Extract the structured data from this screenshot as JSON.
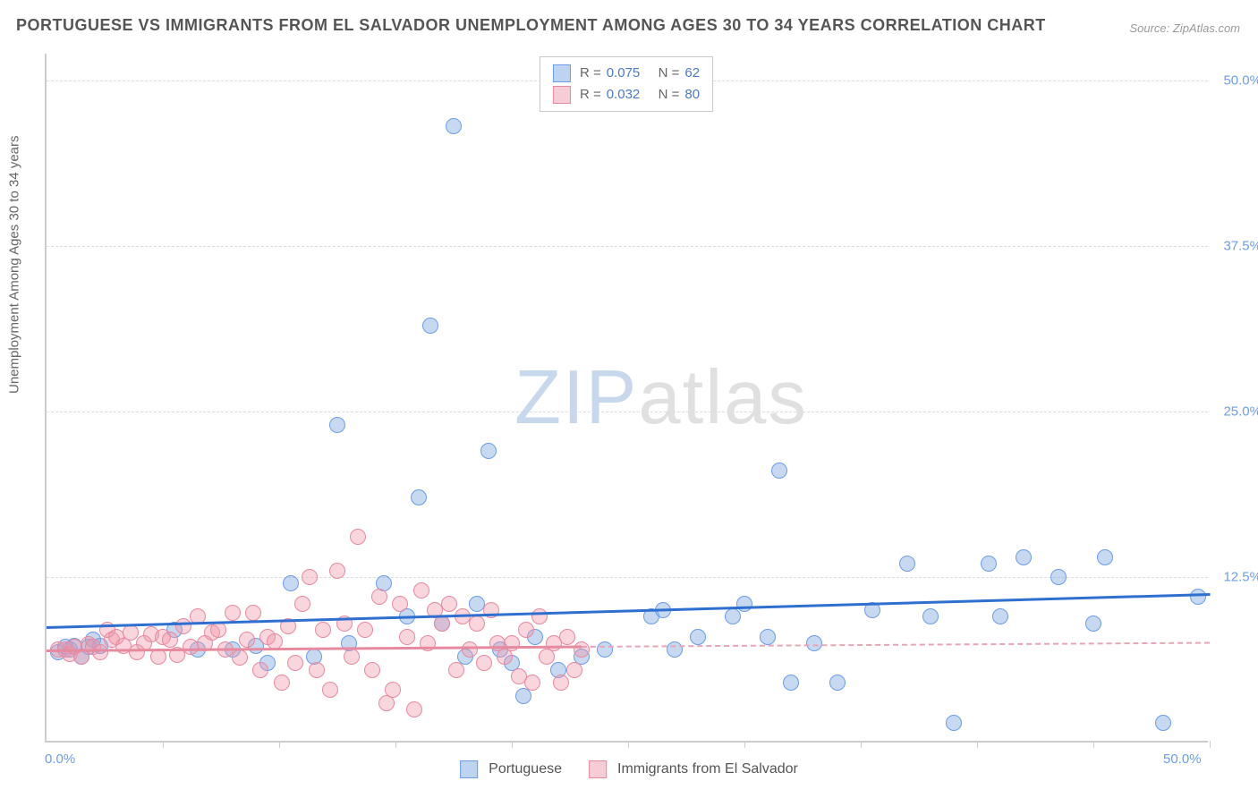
{
  "title": "PORTUGUESE VS IMMIGRANTS FROM EL SALVADOR UNEMPLOYMENT AMONG AGES 30 TO 34 YEARS CORRELATION CHART",
  "source": "Source: ZipAtlas.com",
  "ylabel": "Unemployment Among Ages 30 to 34 years",
  "watermark_a": "ZIP",
  "watermark_b": "atlas",
  "chart": {
    "type": "scatter",
    "xlim": [
      0,
      50
    ],
    "ylim": [
      0,
      52
    ],
    "xtick_labels": [
      "0.0%",
      "50.0%"
    ],
    "ytick_positions": [
      12.5,
      25,
      37.5,
      50
    ],
    "ytick_labels": [
      "12.5%",
      "25.0%",
      "37.5%",
      "50.0%"
    ],
    "xtickmark_positions": [
      5,
      10,
      15,
      20,
      25,
      30,
      35,
      40,
      45,
      50
    ],
    "grid_color": "#dddddd",
    "axis_color": "#cccccc",
    "background_color": "#ffffff",
    "point_radius": 9,
    "series": [
      {
        "name": "Portuguese",
        "fill": "rgba(130,170,225,0.45)",
        "stroke": "#6b9de8",
        "swatch_fill": "#bdd4f0",
        "swatch_stroke": "#6b9de8",
        "R": "0.075",
        "N": "62",
        "trend": {
          "x1": 0,
          "y1": 8.8,
          "x2": 50,
          "y2": 11.3,
          "color": "#2f6fd0",
          "dashed": false
        },
        "points": [
          [
            0.5,
            6.8
          ],
          [
            0.8,
            7.2
          ],
          [
            1.0,
            7.0
          ],
          [
            1.2,
            7.3
          ],
          [
            1.5,
            6.5
          ],
          [
            1.8,
            7.2
          ],
          [
            2.0,
            7.8
          ],
          [
            2.3,
            7.3
          ],
          [
            5.5,
            8.5
          ],
          [
            6.5,
            7.0
          ],
          [
            8.0,
            7.0
          ],
          [
            9.0,
            7.3
          ],
          [
            9.5,
            6.0
          ],
          [
            10.5,
            12.0
          ],
          [
            11.5,
            6.5
          ],
          [
            12.5,
            24.0
          ],
          [
            13.0,
            7.5
          ],
          [
            14.5,
            12.0
          ],
          [
            15.5,
            9.5
          ],
          [
            16.0,
            18.5
          ],
          [
            16.5,
            31.5
          ],
          [
            17.0,
            9.0
          ],
          [
            17.5,
            46.5
          ],
          [
            18.0,
            6.5
          ],
          [
            18.5,
            10.5
          ],
          [
            19.0,
            22.0
          ],
          [
            19.5,
            7.0
          ],
          [
            20.0,
            6.0
          ],
          [
            20.5,
            3.5
          ],
          [
            21.0,
            8.0
          ],
          [
            22.0,
            5.5
          ],
          [
            23.0,
            6.5
          ],
          [
            24.0,
            7.0
          ],
          [
            26.0,
            9.5
          ],
          [
            26.5,
            10.0
          ],
          [
            27.0,
            7.0
          ],
          [
            28.0,
            8.0
          ],
          [
            29.5,
            9.5
          ],
          [
            30.0,
            10.5
          ],
          [
            31.0,
            8.0
          ],
          [
            31.5,
            20.5
          ],
          [
            32.0,
            4.5
          ],
          [
            33.0,
            7.5
          ],
          [
            34.0,
            4.5
          ],
          [
            35.5,
            10.0
          ],
          [
            37.0,
            13.5
          ],
          [
            38.0,
            9.5
          ],
          [
            39.0,
            1.5
          ],
          [
            40.5,
            13.5
          ],
          [
            41.0,
            9.5
          ],
          [
            42.0,
            14.0
          ],
          [
            43.5,
            12.5
          ],
          [
            45.0,
            9.0
          ],
          [
            45.5,
            14.0
          ],
          [
            48.0,
            1.5
          ],
          [
            49.5,
            11.0
          ]
        ]
      },
      {
        "name": "Immigrants from El Salvador",
        "fill": "rgba(240,150,170,0.40)",
        "stroke": "#e68aa0",
        "swatch_fill": "#f6cdd6",
        "swatch_stroke": "#e68aa0",
        "R": "0.032",
        "N": "80",
        "trend": {
          "x1": 0,
          "y1": 7.0,
          "x2": 23,
          "y2": 7.3,
          "color": "#e68aa0",
          "dashed": false
        },
        "trend_ext": {
          "x1": 23,
          "y1": 7.3,
          "x2": 50,
          "y2": 7.6,
          "color": "#e8a5b5",
          "dashed": true
        },
        "points": [
          [
            0.5,
            7.0
          ],
          [
            0.8,
            7.0
          ],
          [
            1.0,
            6.7
          ],
          [
            1.2,
            7.2
          ],
          [
            1.5,
            6.5
          ],
          [
            1.8,
            7.4
          ],
          [
            2.0,
            7.2
          ],
          [
            2.3,
            6.8
          ],
          [
            2.6,
            8.5
          ],
          [
            2.8,
            7.8
          ],
          [
            3.0,
            8.0
          ],
          [
            3.3,
            7.3
          ],
          [
            3.6,
            8.3
          ],
          [
            3.9,
            6.8
          ],
          [
            4.2,
            7.5
          ],
          [
            4.5,
            8.2
          ],
          [
            4.8,
            6.5
          ],
          [
            5.0,
            8.0
          ],
          [
            5.3,
            7.8
          ],
          [
            5.6,
            6.6
          ],
          [
            5.9,
            8.8
          ],
          [
            6.2,
            7.2
          ],
          [
            6.5,
            9.5
          ],
          [
            6.8,
            7.5
          ],
          [
            7.1,
            8.3
          ],
          [
            7.4,
            8.5
          ],
          [
            7.7,
            7.0
          ],
          [
            8.0,
            9.8
          ],
          [
            8.3,
            6.4
          ],
          [
            8.6,
            7.8
          ],
          [
            8.9,
            9.8
          ],
          [
            9.2,
            5.5
          ],
          [
            9.5,
            8.0
          ],
          [
            9.8,
            7.6
          ],
          [
            10.1,
            4.5
          ],
          [
            10.4,
            8.8
          ],
          [
            10.7,
            6.0
          ],
          [
            11.0,
            10.5
          ],
          [
            11.3,
            12.5
          ],
          [
            11.6,
            5.5
          ],
          [
            11.9,
            8.5
          ],
          [
            12.2,
            4.0
          ],
          [
            12.5,
            13.0
          ],
          [
            12.8,
            9.0
          ],
          [
            13.1,
            6.5
          ],
          [
            13.4,
            15.5
          ],
          [
            13.7,
            8.5
          ],
          [
            14.0,
            5.5
          ],
          [
            14.3,
            11.0
          ],
          [
            14.6,
            3.0
          ],
          [
            14.9,
            4.0
          ],
          [
            15.2,
            10.5
          ],
          [
            15.5,
            8.0
          ],
          [
            15.8,
            2.5
          ],
          [
            16.1,
            11.5
          ],
          [
            16.4,
            7.5
          ],
          [
            16.7,
            10.0
          ],
          [
            17.0,
            9.0
          ],
          [
            17.3,
            10.5
          ],
          [
            17.6,
            5.5
          ],
          [
            17.9,
            9.5
          ],
          [
            18.2,
            7.0
          ],
          [
            18.5,
            9.0
          ],
          [
            18.8,
            6.0
          ],
          [
            19.1,
            10.0
          ],
          [
            19.4,
            7.5
          ],
          [
            19.7,
            6.5
          ],
          [
            20.0,
            7.5
          ],
          [
            20.3,
            5.0
          ],
          [
            20.6,
            8.5
          ],
          [
            20.9,
            4.5
          ],
          [
            21.2,
            9.5
          ],
          [
            21.5,
            6.5
          ],
          [
            21.8,
            7.5
          ],
          [
            22.1,
            4.5
          ],
          [
            22.4,
            8.0
          ],
          [
            22.7,
            5.5
          ],
          [
            23.0,
            7.0
          ]
        ]
      }
    ]
  },
  "legend_bottom": {
    "items": [
      "Portuguese",
      "Immigrants from El Salvador"
    ]
  }
}
